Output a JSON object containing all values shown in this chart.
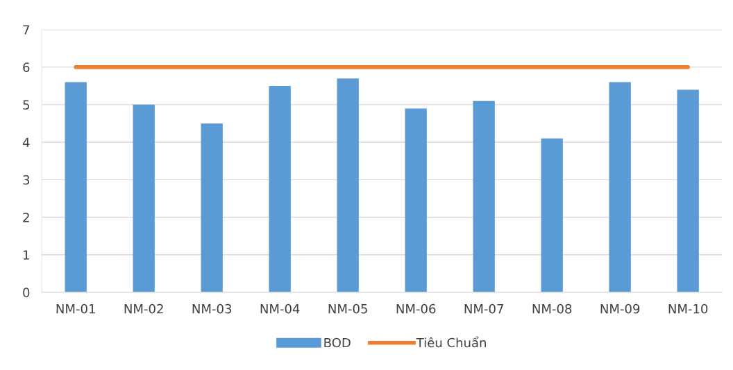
{
  "chart_data": {
    "type": "bar",
    "categories": [
      "NM-01",
      "NM-02",
      "NM-03",
      "NM-04",
      "NM-05",
      "NM-06",
      "NM-07",
      "NM-08",
      "NM-09",
      "NM-10"
    ],
    "series": [
      {
        "name": "BOD",
        "color": "#5b9bd5",
        "values": [
          5.6,
          5.0,
          4.5,
          5.5,
          5.7,
          4.9,
          5.1,
          4.1,
          5.6,
          5.4
        ]
      },
      {
        "name": "Tiêu Chuẩn",
        "type": "line",
        "color": "#ed7d31",
        "values": [
          6,
          6,
          6,
          6,
          6,
          6,
          6,
          6,
          6,
          6
        ]
      }
    ],
    "ylim": [
      0,
      7
    ],
    "yticks": [
      0,
      1,
      2,
      3,
      4,
      5,
      6,
      7
    ],
    "grid": "y",
    "legend": "bottom"
  }
}
